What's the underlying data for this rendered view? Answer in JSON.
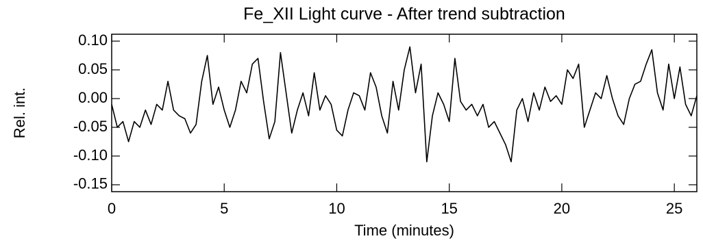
{
  "chart_data": {
    "type": "line",
    "title": "Fe_XII Light curve - After trend subtraction",
    "x_label": "Time (minutes)",
    "y_label": "Rel. int.",
    "x": [
      0,
      0.25,
      0.5,
      0.75,
      1,
      1.25,
      1.5,
      1.75,
      2,
      2.25,
      2.5,
      2.75,
      3,
      3.25,
      3.5,
      3.75,
      4,
      4.25,
      4.5,
      4.75,
      5,
      5.25,
      5.5,
      5.75,
      6,
      6.25,
      6.5,
      6.75,
      7,
      7.25,
      7.5,
      7.75,
      8,
      8.25,
      8.5,
      8.75,
      9,
      9.25,
      9.5,
      9.75,
      10,
      10.25,
      10.5,
      10.75,
      11,
      11.25,
      11.5,
      11.75,
      12,
      12.25,
      12.5,
      12.75,
      13,
      13.25,
      13.5,
      13.75,
      14,
      14.25,
      14.5,
      14.75,
      15,
      15.25,
      15.5,
      15.75,
      16,
      16.25,
      16.5,
      16.75,
      17,
      17.25,
      17.5,
      17.75,
      18,
      18.25,
      18.5,
      18.75,
      19,
      19.25,
      19.5,
      19.75,
      20,
      20.25,
      20.5,
      20.75,
      21,
      21.25,
      21.5,
      21.75,
      22,
      22.25,
      22.5,
      22.75,
      23,
      23.25,
      23.5,
      23.75,
      24,
      24.25,
      24.5,
      24.75,
      25,
      25.25,
      25.5,
      25.75,
      26
    ],
    "series": [
      {
        "color": "#000000",
        "values": [
          -0.01,
          -0.05,
          -0.04,
          -0.075,
          -0.04,
          -0.05,
          -0.02,
          -0.045,
          -0.01,
          -0.02,
          0.03,
          -0.02,
          -0.03,
          -0.035,
          -0.06,
          -0.045,
          0.03,
          0.075,
          -0.01,
          0.02,
          -0.02,
          -0.05,
          -0.02,
          0.03,
          0.01,
          0.06,
          0.07,
          -0.005,
          -0.07,
          -0.04,
          0.08,
          0.01,
          -0.06,
          -0.02,
          0.01,
          -0.03,
          0.045,
          -0.02,
          0.005,
          -0.01,
          -0.055,
          -0.065,
          -0.02,
          0.01,
          0.005,
          -0.02,
          0.045,
          0.02,
          -0.03,
          -0.06,
          0.03,
          -0.02,
          0.05,
          0.09,
          0.01,
          0.06,
          -0.11,
          -0.03,
          0.01,
          -0.01,
          -0.04,
          0.07,
          -0.005,
          -0.02,
          -0.01,
          -0.03,
          -0.01,
          -0.05,
          -0.04,
          -0.06,
          -0.08,
          -0.11,
          -0.02,
          0.0,
          -0.04,
          0.01,
          -0.02,
          0.02,
          -0.005,
          0.005,
          -0.01,
          0.05,
          0.035,
          0.06,
          -0.05,
          -0.02,
          0.01,
          0.0,
          0.04,
          0.0,
          -0.03,
          -0.045,
          0.0,
          0.025,
          0.03,
          0.06,
          0.085,
          0.01,
          -0.02,
          0.06,
          0.0,
          0.055,
          -0.01,
          -0.03,
          0.005
        ]
      }
    ],
    "xlim": [
      0,
      26
    ],
    "ylim": [
      -0.162,
      0.112
    ],
    "xticks": [
      0,
      5,
      10,
      15,
      20,
      25
    ],
    "yticks": [
      {
        "value": 0.1,
        "label": "0.10"
      },
      {
        "value": 0.05,
        "label": "0.05"
      },
      {
        "value": 0,
        "label": "0.00"
      },
      {
        "value": -0.05,
        "label": "-0.05"
      },
      {
        "value": -0.1,
        "label": "-0.10"
      },
      {
        "value": -0.15,
        "label": "-0.15"
      }
    ]
  }
}
